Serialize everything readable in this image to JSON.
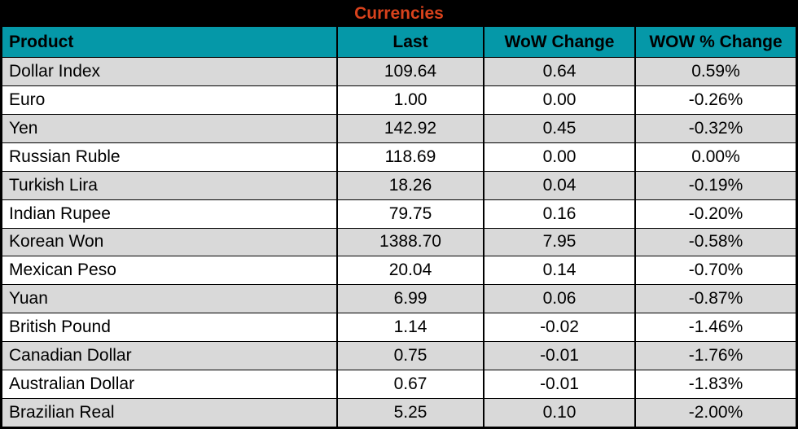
{
  "title": "Currencies",
  "colors": {
    "title_text": "#D8421C",
    "header_bg": "#0598A8",
    "row_alt_bg": "#D9D9D9",
    "border": "#000000"
  },
  "table": {
    "headers": [
      "Product",
      "Last",
      "WoW Change",
      "WOW % Change"
    ],
    "rows": [
      {
        "product": "Dollar Index",
        "last": "109.64",
        "wow_change": "0.64",
        "wow_pct_change": "0.59%"
      },
      {
        "product": "Euro",
        "last": "1.00",
        "wow_change": "0.00",
        "wow_pct_change": "-0.26%"
      },
      {
        "product": "Yen",
        "last": "142.92",
        "wow_change": "0.45",
        "wow_pct_change": "-0.32%"
      },
      {
        "product": "Russian Ruble",
        "last": "118.69",
        "wow_change": "0.00",
        "wow_pct_change": "0.00%"
      },
      {
        "product": "Turkish Lira",
        "last": "18.26",
        "wow_change": "0.04",
        "wow_pct_change": "-0.19%"
      },
      {
        "product": "Indian Rupee",
        "last": "79.75",
        "wow_change": "0.16",
        "wow_pct_change": "-0.20%"
      },
      {
        "product": "Korean Won",
        "last": "1388.70",
        "wow_change": "7.95",
        "wow_pct_change": "-0.58%"
      },
      {
        "product": "Mexican Peso",
        "last": "20.04",
        "wow_change": "0.14",
        "wow_pct_change": "-0.70%"
      },
      {
        "product": "Yuan",
        "last": "6.99",
        "wow_change": "0.06",
        "wow_pct_change": "-0.87%"
      },
      {
        "product": "British Pound",
        "last": "1.14",
        "wow_change": "-0.02",
        "wow_pct_change": "-1.46%"
      },
      {
        "product": "Canadian Dollar",
        "last": "0.75",
        "wow_change": "-0.01",
        "wow_pct_change": "-1.76%"
      },
      {
        "product": "Australian Dollar",
        "last": "0.67",
        "wow_change": "-0.01",
        "wow_pct_change": "-1.83%"
      },
      {
        "product": "Brazilian Real",
        "last": "5.25",
        "wow_change": "0.10",
        "wow_pct_change": "-2.00%"
      }
    ]
  },
  "chart_data": {
    "type": "table",
    "title": "Currencies",
    "columns": [
      "Product",
      "Last",
      "WoW Change",
      "WOW % Change"
    ],
    "rows": [
      [
        "Dollar Index",
        109.64,
        0.64,
        "0.59%"
      ],
      [
        "Euro",
        1.0,
        0.0,
        "-0.26%"
      ],
      [
        "Yen",
        142.92,
        0.45,
        "-0.32%"
      ],
      [
        "Russian Ruble",
        118.69,
        0.0,
        "0.00%"
      ],
      [
        "Turkish Lira",
        18.26,
        0.04,
        "-0.19%"
      ],
      [
        "Indian Rupee",
        79.75,
        0.16,
        "-0.20%"
      ],
      [
        "Korean Won",
        1388.7,
        7.95,
        "-0.58%"
      ],
      [
        "Mexican Peso",
        20.04,
        0.14,
        "-0.70%"
      ],
      [
        "Yuan",
        6.99,
        0.06,
        "-0.87%"
      ],
      [
        "British Pound",
        1.14,
        -0.02,
        "-1.46%"
      ],
      [
        "Canadian Dollar",
        0.75,
        -0.01,
        "-1.76%"
      ],
      [
        "Australian Dollar",
        0.67,
        -0.01,
        "-1.83%"
      ],
      [
        "Brazilian Real",
        5.25,
        0.1,
        "-2.00%"
      ]
    ]
  }
}
